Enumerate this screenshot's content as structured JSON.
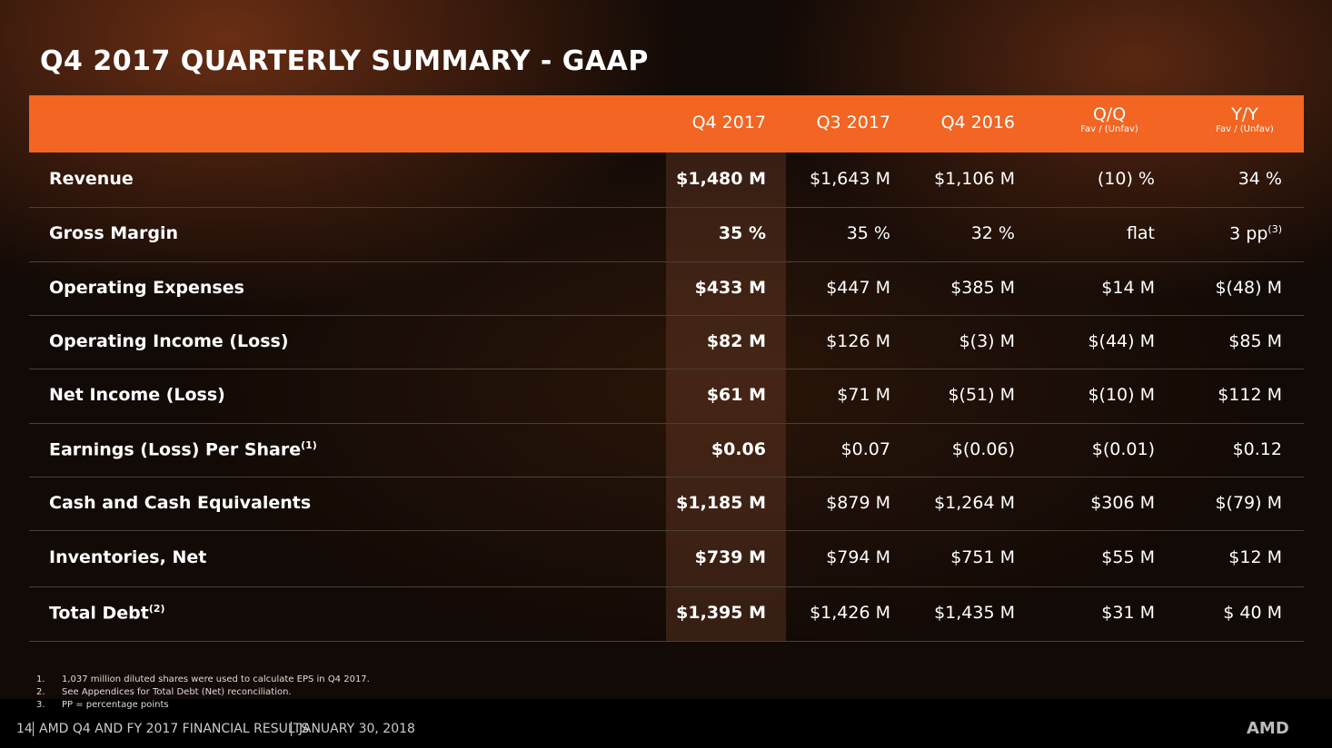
{
  "title": "Q4 2017 QUARTERLY SUMMARY - GAAP",
  "table": {
    "columns": [
      {
        "label": "Q4 2017"
      },
      {
        "label": "Q3 2017"
      },
      {
        "label": "Q4 2016"
      },
      {
        "label": "Q/Q",
        "sublabel": "Fav / (Unfav)"
      },
      {
        "label": "Y/Y",
        "sublabel": "Fav / (Unfav)"
      }
    ],
    "rows": [
      {
        "label": "Revenue",
        "cells": [
          "$1,480 M",
          "$1,643 M",
          "$1,106 M",
          "(10) %",
          "34 %"
        ]
      },
      {
        "label": "Gross Margin",
        "cells": [
          "35 %",
          "35 %",
          "32 %",
          "flat",
          {
            "text": "3 pp",
            "sup": "(3)"
          }
        ]
      },
      {
        "label": "Operating Expenses",
        "cells": [
          "$433 M",
          "$447 M",
          "$385 M",
          "$14 M",
          "$(48) M"
        ]
      },
      {
        "label": "Operating Income (Loss)",
        "cells": [
          "$82 M",
          "$126 M",
          "$(3) M",
          "$(44) M",
          "$85 M"
        ]
      },
      {
        "label": "Net Income (Loss)",
        "cells": [
          "$61 M",
          "$71 M",
          "$(51) M",
          "$(10) M",
          "$112 M"
        ]
      },
      {
        "label": "Earnings (Loss) Per Share",
        "sup": "(1)",
        "cells": [
          "$0.06",
          "$0.07",
          "$(0.06)",
          "$(0.01)",
          "$0.12"
        ]
      },
      {
        "label": "Cash and Cash Equivalents",
        "cells": [
          "$1,185 M",
          "$879 M",
          "$1,264 M",
          "$306 M",
          "$(79) M"
        ]
      },
      {
        "label": "Inventories, Net",
        "cells": [
          "$739 M",
          "$794 M",
          "$751 M",
          "$55 M",
          "$12 M"
        ]
      },
      {
        "label": "Total Debt",
        "sup": "(2)",
        "cells": [
          "$1,395 M",
          "$1,426 M",
          "$1,435 M",
          "$31 M",
          "$ 40 M"
        ]
      }
    ]
  },
  "footnotes": [
    {
      "number": "1.",
      "text": "1,037 million diluted shares were used to calculate EPS in Q4 2017."
    },
    {
      "number": "2.",
      "text": "See Appendices for Total Debt (Net) reconciliation."
    },
    {
      "number": "3.",
      "text": "PP = percentage points"
    }
  ],
  "footer": {
    "page": "14",
    "title": "AMD Q4 AND FY 2017 FINANCIAL RESULTS",
    "date": "JANUARY 30, 2018",
    "logo": "AMD"
  }
}
